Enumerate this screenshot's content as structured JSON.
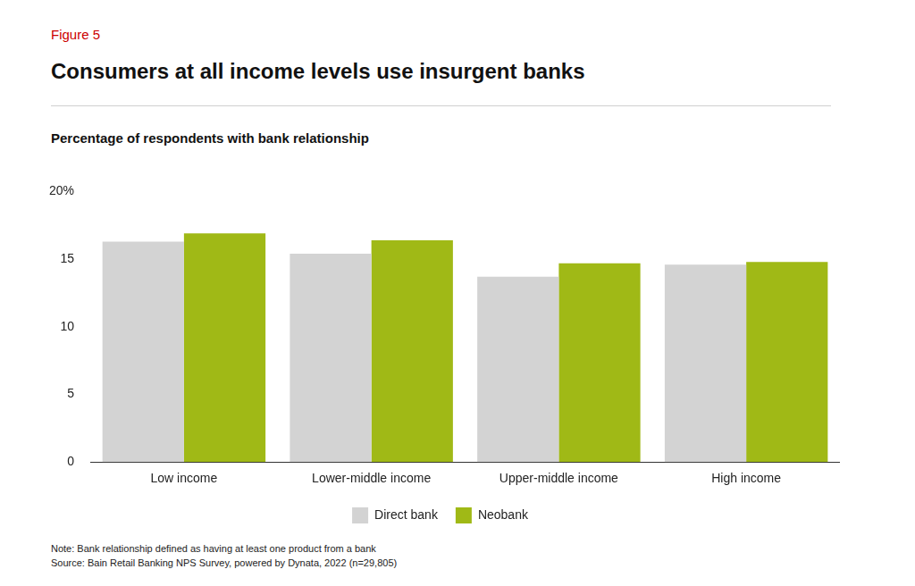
{
  "chart_data": {
    "type": "bar",
    "figure_label": "Figure 5",
    "title": "Consumers at all income levels use insurgent banks",
    "subtitle": "Percentage of respondents with bank relationship",
    "categories": [
      "Low income",
      "Lower-middle income",
      "Upper-middle income",
      "High income"
    ],
    "series": [
      {
        "name": "Direct bank",
        "color": "#d3d3d3",
        "values": [
          16.3,
          15.4,
          13.7,
          14.6
        ]
      },
      {
        "name": "Neobank",
        "color": "#a0b916",
        "values": [
          16.9,
          16.4,
          14.7,
          14.8
        ]
      }
    ],
    "ylim": [
      0,
      20
    ],
    "yticks": [
      0,
      5,
      10,
      15,
      {
        "value": 20,
        "label": "20%"
      }
    ],
    "grid": false,
    "legend": "bottom",
    "note": "Note: Bank relationship defined as having at least one product from a bank",
    "source": "Source: Bain Retail Banking NPS Survey, powered by Dynata, 2022 (n=29,805)"
  }
}
